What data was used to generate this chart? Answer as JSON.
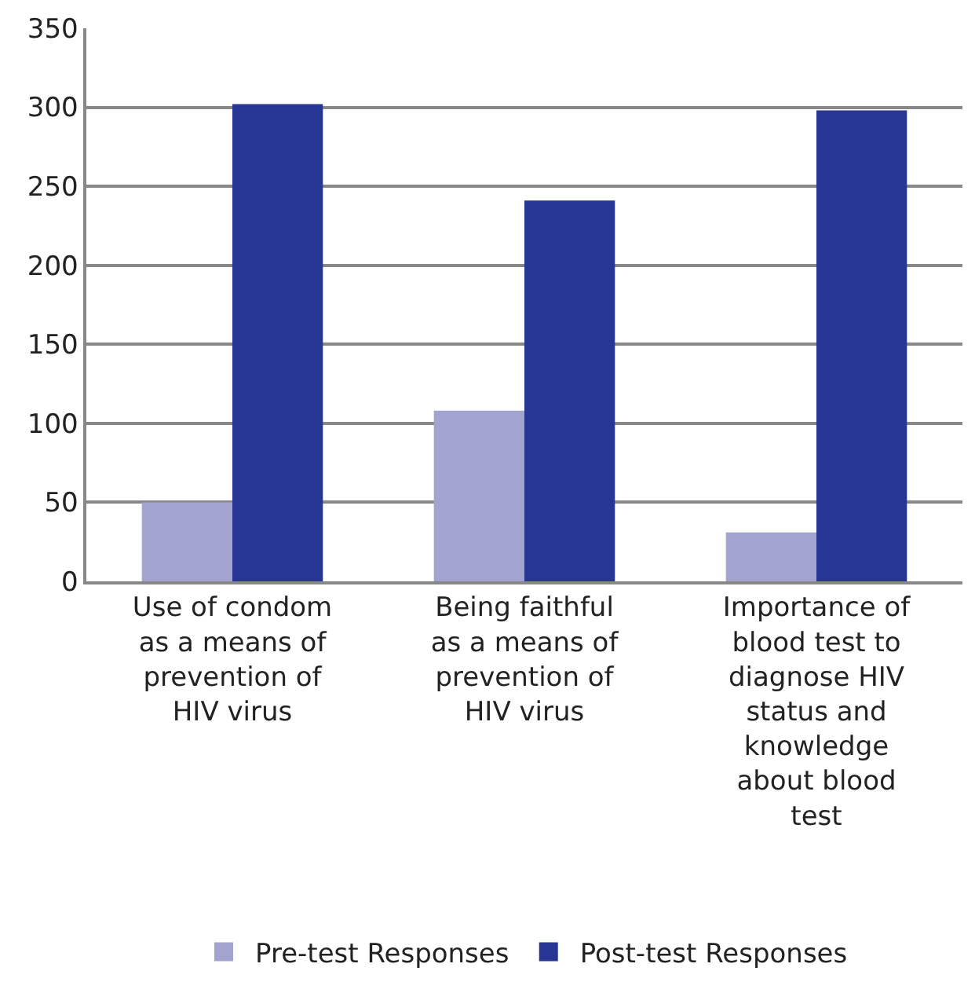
{
  "chart_data": {
    "type": "bar",
    "categories": [
      "Use of condom as a means of prevention of HIV virus",
      "Being faithful as a means of prevention of HIV virus",
      "Importance of blood test to diagnose HIV status and knowledge about blood test"
    ],
    "series": [
      {
        "name": "Pre-test Responses",
        "color": "#a3a3cf",
        "values": [
          50,
          108,
          31
        ]
      },
      {
        "name": "Post-test Responses",
        "color": "#273692",
        "values": [
          302,
          241,
          298
        ]
      }
    ],
    "ylim": [
      0,
      350
    ],
    "yticks": [
      0,
      50,
      100,
      150,
      200,
      250,
      300,
      350
    ],
    "grid": "y",
    "legend": "bottom"
  }
}
